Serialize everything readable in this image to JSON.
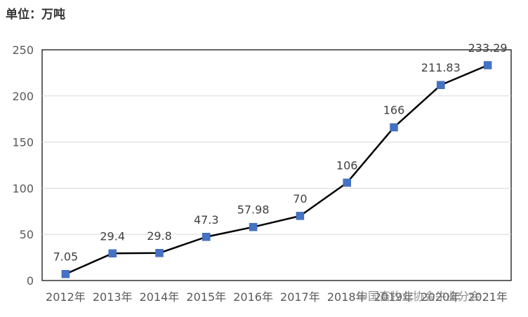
{
  "unit_label": "单位：万吨",
  "watermark": "中国畜牧业协会牛业分会",
  "chart_data": {
    "type": "line",
    "title": "",
    "xlabel": "",
    "ylabel": "",
    "categories": [
      "2012年",
      "2013年",
      "2014年",
      "2015年",
      "2016年",
      "2017年",
      "2018年",
      "2019年",
      "2020年",
      "2021年"
    ],
    "series": [
      {
        "values": [
          7.05,
          29.4,
          29.8,
          47.3,
          57.98,
          70,
          106,
          166,
          211.83,
          233.29
        ]
      }
    ],
    "data_labels": [
      "7.05",
      "29.4",
      "29.8",
      "47.3",
      "57.98",
      "70",
      "106",
      "166",
      "211.83",
      "233.29"
    ],
    "ylim": [
      0,
      250
    ],
    "yticks": [
      0,
      50,
      100,
      150,
      200,
      250
    ],
    "grid": true,
    "legend": "none",
    "colors": {
      "line": "#000000",
      "marker": "#4472C4",
      "grid": "#d9d9d9",
      "axis_text": "#595959"
    }
  }
}
